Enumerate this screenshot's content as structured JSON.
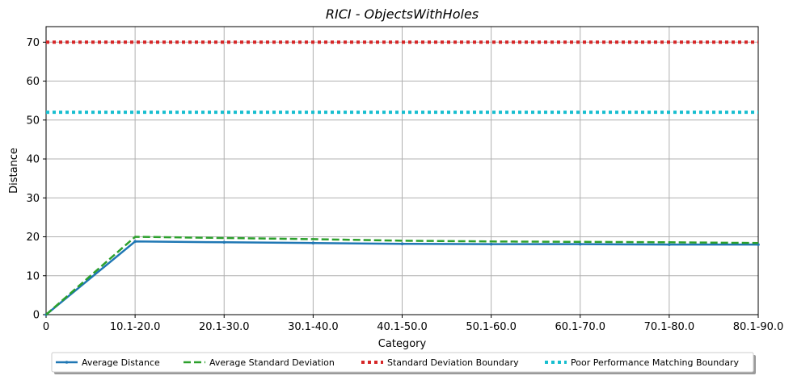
{
  "chart_data": {
    "type": "line",
    "title": "RICI - ObjectsWithHoles",
    "xlabel": "Category",
    "ylabel": "Distance",
    "categories": [
      "0",
      "10.1-20.0",
      "20.1-30.0",
      "30.1-40.0",
      "40.1-50.0",
      "50.1-60.0",
      "60.1-70.0",
      "70.1-80.0",
      "80.1-90.0"
    ],
    "ylim": [
      0,
      74
    ],
    "yticks": [
      0,
      10,
      20,
      30,
      40,
      50,
      60,
      70
    ],
    "grid": true,
    "legend_position": "bottom-center",
    "series": [
      {
        "name": "Average Distance",
        "color": "#1f77b4",
        "style": "solid-marker",
        "values": [
          0,
          18.8,
          18.6,
          18.4,
          18.2,
          18.1,
          18.1,
          18.0,
          18.0
        ]
      },
      {
        "name": "Average Standard Deviation",
        "color": "#2ca02c",
        "style": "dashed",
        "values": [
          0,
          20.0,
          19.7,
          19.4,
          19.0,
          18.8,
          18.7,
          18.6,
          18.4
        ]
      },
      {
        "name": "Standard Deviation Boundary",
        "color": "#d62728",
        "style": "dotted",
        "values": [
          70,
          70,
          70,
          70,
          70,
          70,
          70,
          70,
          70
        ]
      },
      {
        "name": "Poor Performance Matching Boundary",
        "color": "#17becf",
        "style": "dotted",
        "values": [
          52,
          52,
          52,
          52,
          52,
          52,
          52,
          52,
          52
        ]
      }
    ]
  }
}
